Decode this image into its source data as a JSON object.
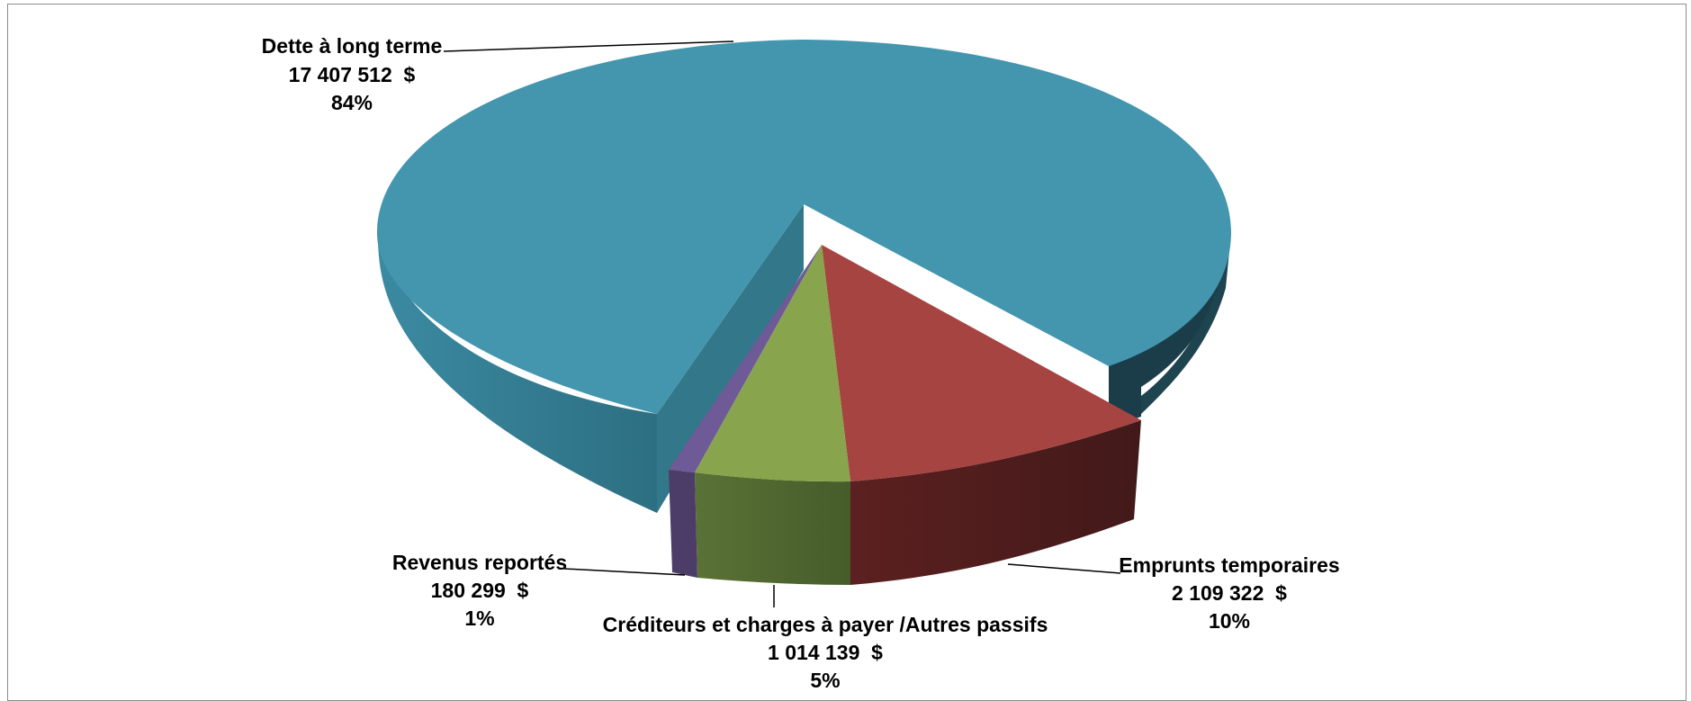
{
  "chart_data": {
    "type": "pie",
    "style": "3d-exploded",
    "title": "",
    "legend": "none",
    "slices": [
      {
        "label": "Dette à long terme",
        "value_text": "17 407 512  $",
        "percent_text": "84%",
        "value": 17407512,
        "percent": 84,
        "color": "#4396ae"
      },
      {
        "label": "Emprunts temporaires",
        "value_text": "2 109 322  $",
        "percent_text": "10%",
        "value": 2109322,
        "percent": 10,
        "color": "#a64442"
      },
      {
        "label": "Créditeurs et charges à payer /Autres passifs",
        "value_text": "1 014 139  $",
        "percent_text": "5%",
        "value": 1014139,
        "percent": 5,
        "color": "#88a54d"
      },
      {
        "label": "Revenus reportés",
        "value_text": "180 299  $",
        "percent_text": "1%",
        "value": 180299,
        "percent": 1,
        "color": "#6d5a96"
      }
    ]
  }
}
